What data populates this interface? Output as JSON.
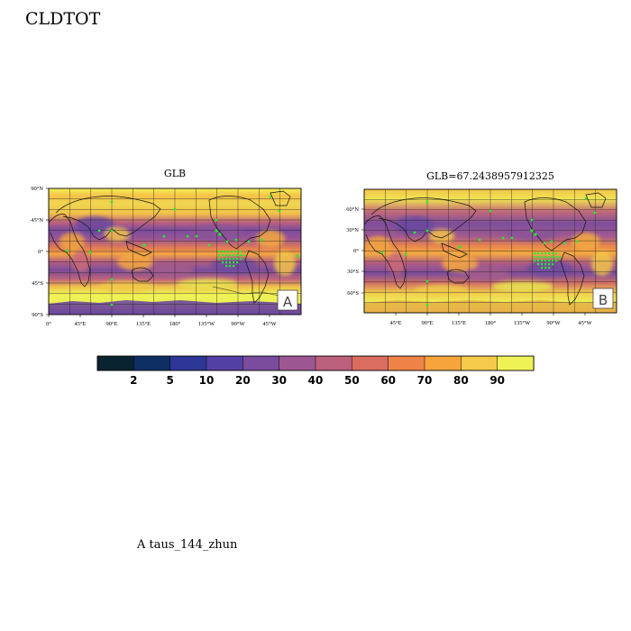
{
  "page": {
    "title": "CLDTOT",
    "caption": "A  taus_144_zhun"
  },
  "panels": [
    {
      "title": "GLB",
      "label": "A",
      "lat_ticks": [
        "90°N",
        "45°N",
        "0°",
        "45°S",
        "90°S"
      ],
      "lon_ticks": [
        "0°",
        "45°E",
        "90°E",
        "135°E",
        "180°",
        "135°W",
        "90°W",
        "45°W"
      ]
    },
    {
      "title": "GLB=67.2438957912325",
      "label": "B",
      "lat_ticks": [
        "60°N",
        "30°N",
        "0°",
        "30°S",
        "60°S"
      ],
      "lon_ticks": [
        "45°E",
        "90°E",
        "135°E",
        "180°",
        "135°W",
        "90°W",
        "45°W"
      ]
    }
  ],
  "colorbar": {
    "labels": [
      "2",
      "5",
      "10",
      "20",
      "30",
      "40",
      "50",
      "60",
      "70",
      "80",
      "90"
    ],
    "colors": [
      "#0a2330",
      "#0f2f62",
      "#2e3796",
      "#5440a4",
      "#794c9e",
      "#9c5792",
      "#bb617d",
      "#da6d60",
      "#ee8348",
      "#f8a43c",
      "#f5c94a",
      "#eff255"
    ]
  },
  "colors": {
    "high_cloud": "#eef152",
    "low_cloud": "#5a46a4",
    "significance_marker": "#22ee33",
    "coast": "#111111"
  }
}
